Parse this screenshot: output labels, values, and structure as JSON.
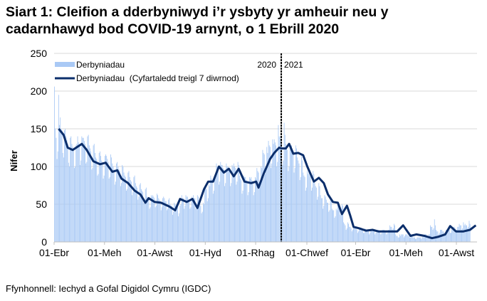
{
  "chart_data": {
    "type": "bar+line",
    "title_line1": "Siart 1: Cleifion a dderbyniwyd i’r ysbyty yr amheuir neu y",
    "title_line2": "cadarnhawyd bod COVID-19 arnynt, o 1 Ebrill 2020",
    "ylabel": "Nifer",
    "xlabel": "",
    "ylim": [
      0,
      250
    ],
    "yticks": [
      "0",
      "50",
      "100",
      "150",
      "200",
      "250"
    ],
    "x_range": [
      "2020-04-01",
      "2021-08-25"
    ],
    "xticks": [
      {
        "date": "2020-04-01",
        "label": "01-Ebr"
      },
      {
        "date": "2020-06-01",
        "label": "01-Meh"
      },
      {
        "date": "2020-08-01",
        "label": "01-Awst"
      },
      {
        "date": "2020-10-01",
        "label": "01-Hyd"
      },
      {
        "date": "2020-12-01",
        "label": "01-Rhag"
      },
      {
        "date": "2021-02-01",
        "label": "01-Chwef"
      },
      {
        "date": "2021-04-01",
        "label": "01-Ebr"
      },
      {
        "date": "2021-06-01",
        "label": "01-Meh"
      },
      {
        "date": "2021-08-01",
        "label": "01-Awst"
      }
    ],
    "grid": true,
    "legend_position": "top-left",
    "divider": {
      "date": "2021-01-01",
      "left_label": "2020",
      "right_label": "2021"
    },
    "colors": {
      "bars": "#a9c9f5",
      "line": "#0b2e6b",
      "grid": "#d9d9d9"
    },
    "series": [
      {
        "name": "Derbyniadau",
        "type": "bar",
        "daily_values_from_start": [
          206,
          150,
          138,
          110,
          120,
          195,
          155,
          165,
          150,
          148,
          118,
          112,
          148,
          150,
          140,
          135,
          130,
          105,
          100,
          138,
          140,
          130,
          126,
          122,
          98,
          100,
          128,
          130,
          140,
          132,
          128,
          102,
          108,
          140,
          138,
          138,
          134,
          130,
          104,
          106,
          140,
          142,
          128,
          124,
          120,
          96,
          98,
          128,
          130,
          118,
          112,
          110,
          88,
          90,
          118,
          120,
          114,
          108,
          106,
          84,
          88,
          114,
          116,
          114,
          110,
          106,
          84,
          86,
          116,
          112,
          104,
          100,
          96,
          76,
          80,
          104,
          106,
          100,
          96,
          94,
          74,
          78,
          102,
          100,
          92,
          88,
          86,
          68,
          70,
          92,
          94,
          86,
          82,
          80,
          62,
          66,
          86,
          88,
          78,
          74,
          72,
          56,
          60,
          76,
          78,
          70,
          68,
          66,
          52,
          54,
          70,
          72,
          60,
          58,
          56,
          44,
          46,
          62,
          60,
          62,
          60,
          58,
          46,
          48,
          64,
          62,
          58,
          56,
          54,
          42,
          46,
          58,
          60,
          58,
          54,
          54,
          42,
          44,
          56,
          58,
          50,
          48,
          48,
          36,
          40,
          52,
          50,
          48,
          46,
          46,
          34,
          38,
          48,
          50,
          62,
          58,
          58,
          44,
          48,
          62,
          60,
          60,
          56,
          56,
          44,
          46,
          60,
          58,
          62,
          58,
          58,
          44,
          48,
          62,
          60,
          52,
          50,
          48,
          38,
          40,
          52,
          50,
          74,
          72,
          70,
          54,
          58,
          76,
          74,
          88,
          84,
          82,
          64,
          68,
          88,
          86,
          104,
          100,
          98,
          76,
          80,
          106,
          102,
          102,
          98,
          96,
          74,
          78,
          104,
          100,
          100,
          96,
          94,
          74,
          78,
          102,
          100,
          104,
          100,
          98,
          76,
          80,
          106,
          102,
          88,
          84,
          82,
          64,
          68,
          88,
          86,
          86,
          82,
          80,
          62,
          66,
          86,
          84,
          86,
          82,
          80,
          62,
          66,
          86,
          84,
          98,
          94,
          92,
          72,
          76,
          100,
          98,
          122,
          118,
          116,
          90,
          94,
          126,
          118,
          134,
          128,
          126,
          98,
          104,
          136,
          130,
          136,
          132,
          128,
          100,
          106,
          155,
          140,
          140,
          134,
          132,
          102,
          108,
          158,
          142,
          130,
          124,
          122,
          94,
          100,
          130,
          126,
          128,
          122,
          120,
          92,
          98,
          128,
          124,
          112,
          108,
          104,
          82,
          86,
          114,
          108,
          92,
          88,
          86,
          68,
          72,
          94,
          90,
          92,
          88,
          86,
          68,
          72,
          94,
          90,
          78,
          74,
          72,
          56,
          60,
          78,
          74,
          62,
          58,
          58,
          44,
          48,
          62,
          60,
          56,
          52,
          52,
          40,
          42,
          56,
          54,
          44,
          42,
          42,
          32,
          34,
          44,
          42,
          52,
          48,
          48,
          36,
          40,
          50,
          48,
          26,
          24,
          22,
          16,
          18,
          26,
          24,
          20,
          20,
          18,
          14,
          16,
          20,
          20,
          18,
          18,
          16,
          12,
          14,
          18,
          18,
          16,
          16,
          16,
          12,
          12,
          18,
          16,
          16,
          14,
          14,
          10,
          12,
          16,
          16,
          16,
          14,
          14,
          10,
          12,
          16,
          16,
          16,
          14,
          14,
          10,
          12,
          16,
          16,
          16,
          14,
          14,
          10,
          12,
          16,
          16,
          22,
          20,
          20,
          16,
          18,
          24,
          22,
          10,
          8,
          8,
          6,
          6,
          10,
          8,
          10,
          10,
          10,
          6,
          8,
          10,
          10,
          10,
          8,
          8,
          6,
          6,
          10,
          8,
          6,
          6,
          6,
          4,
          4,
          6,
          6,
          6,
          6,
          6,
          4,
          6,
          8,
          6,
          10,
          10,
          10,
          6,
          8,
          10,
          10,
          22,
          20,
          20,
          16,
          18,
          30,
          22,
          16,
          14,
          14,
          10,
          12,
          16,
          16,
          16,
          14,
          14,
          10,
          12,
          16,
          16,
          16,
          16,
          16,
          12,
          12,
          18,
          16,
          20,
          20,
          18,
          14,
          16,
          20,
          20,
          24,
          22,
          22,
          16,
          18,
          26,
          22,
          24,
          22,
          22,
          18,
          20,
          28,
          24
        ]
      },
      {
        "name": "Derbyniadau  (Cyfartaledd treigl 7 diwrnod)",
        "type": "line",
        "points": [
          [
            "2020-04-06",
            150
          ],
          [
            "2020-04-12",
            142
          ],
          [
            "2020-04-17",
            125
          ],
          [
            "2020-04-23",
            122
          ],
          [
            "2020-05-04",
            130
          ],
          [
            "2020-05-10",
            122
          ],
          [
            "2020-05-18",
            107
          ],
          [
            "2020-05-26",
            103
          ],
          [
            "2020-06-02",
            105
          ],
          [
            "2020-06-10",
            93
          ],
          [
            "2020-06-16",
            95
          ],
          [
            "2020-06-21",
            84
          ],
          [
            "2020-06-29",
            78
          ],
          [
            "2020-07-07",
            68
          ],
          [
            "2020-07-14",
            63
          ],
          [
            "2020-07-20",
            52
          ],
          [
            "2020-07-24",
            58
          ],
          [
            "2020-07-31",
            53
          ],
          [
            "2020-08-08",
            52
          ],
          [
            "2020-08-18",
            47
          ],
          [
            "2020-08-25",
            42
          ],
          [
            "2020-08-31",
            57
          ],
          [
            "2020-09-08",
            53
          ],
          [
            "2020-09-15",
            57
          ],
          [
            "2020-09-21",
            45
          ],
          [
            "2020-09-29",
            70
          ],
          [
            "2020-10-04",
            80
          ],
          [
            "2020-10-10",
            80
          ],
          [
            "2020-10-17",
            100
          ],
          [
            "2020-10-23",
            92
          ],
          [
            "2020-10-29",
            97
          ],
          [
            "2020-11-04",
            87
          ],
          [
            "2020-11-10",
            97
          ],
          [
            "2020-11-17",
            80
          ],
          [
            "2020-11-25",
            78
          ],
          [
            "2020-12-01",
            80
          ],
          [
            "2020-12-04",
            72
          ],
          [
            "2020-12-10",
            90
          ],
          [
            "2020-12-18",
            110
          ],
          [
            "2020-12-23",
            118
          ],
          [
            "2020-12-29",
            125
          ],
          [
            "2021-01-01",
            124
          ],
          [
            "2021-01-06",
            124
          ],
          [
            "2021-01-10",
            130
          ],
          [
            "2021-01-15",
            117
          ],
          [
            "2021-01-21",
            118
          ],
          [
            "2021-01-27",
            115
          ],
          [
            "2021-02-01",
            100
          ],
          [
            "2021-02-09",
            80
          ],
          [
            "2021-02-15",
            85
          ],
          [
            "2021-02-21",
            78
          ],
          [
            "2021-02-26",
            63
          ],
          [
            "2021-03-04",
            53
          ],
          [
            "2021-03-10",
            52
          ],
          [
            "2021-03-15",
            37
          ],
          [
            "2021-03-21",
            48
          ],
          [
            "2021-03-25",
            35
          ],
          [
            "2021-03-29",
            20
          ],
          [
            "2021-04-05",
            18
          ],
          [
            "2021-04-13",
            15
          ],
          [
            "2021-04-21",
            16
          ],
          [
            "2021-04-28",
            14
          ],
          [
            "2021-05-10",
            14
          ],
          [
            "2021-05-21",
            14
          ],
          [
            "2021-05-28",
            22
          ],
          [
            "2021-06-06",
            8
          ],
          [
            "2021-06-13",
            10
          ],
          [
            "2021-06-23",
            8
          ],
          [
            "2021-07-02",
            5
          ],
          [
            "2021-07-10",
            7
          ],
          [
            "2021-07-18",
            10
          ],
          [
            "2021-07-24",
            21
          ],
          [
            "2021-07-31",
            14
          ],
          [
            "2021-08-09",
            14
          ],
          [
            "2021-08-17",
            16
          ],
          [
            "2021-08-24",
            22
          ]
        ]
      }
    ]
  },
  "source": "Ffynhonnell: Iechyd a Gofal Digidol Cymru (IGDC)"
}
